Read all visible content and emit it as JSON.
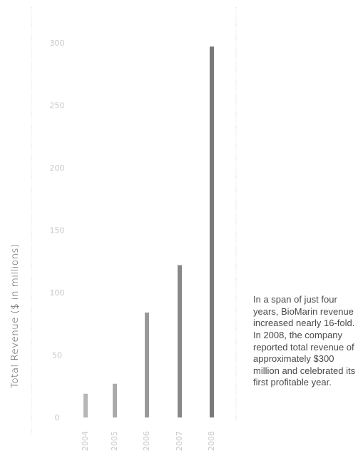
{
  "chart_data": {
    "type": "bar",
    "ylabel": "Total Revenue ($ in millions)",
    "categories": [
      "2004",
      "2005",
      "2006",
      "2007",
      "2008"
    ],
    "values": [
      19,
      27,
      84,
      122,
      297
    ],
    "yticks": [
      0,
      50,
      100,
      150,
      200,
      250,
      300
    ],
    "ylim": [
      0,
      300
    ],
    "grid": false,
    "annotation": "In a span of just four years, BioMarin revenue increased nearly 16-fold. In 2008, the company reported total revenue of approximately $300 million and celebrated its first profitable year.",
    "colors": {
      "bars": [
        "#b6b6b6",
        "#aaaaaa",
        "#999999",
        "#888888",
        "#7a7a7a"
      ],
      "ticks": "#c8c8c8",
      "frame": "#d9d9d9"
    }
  }
}
